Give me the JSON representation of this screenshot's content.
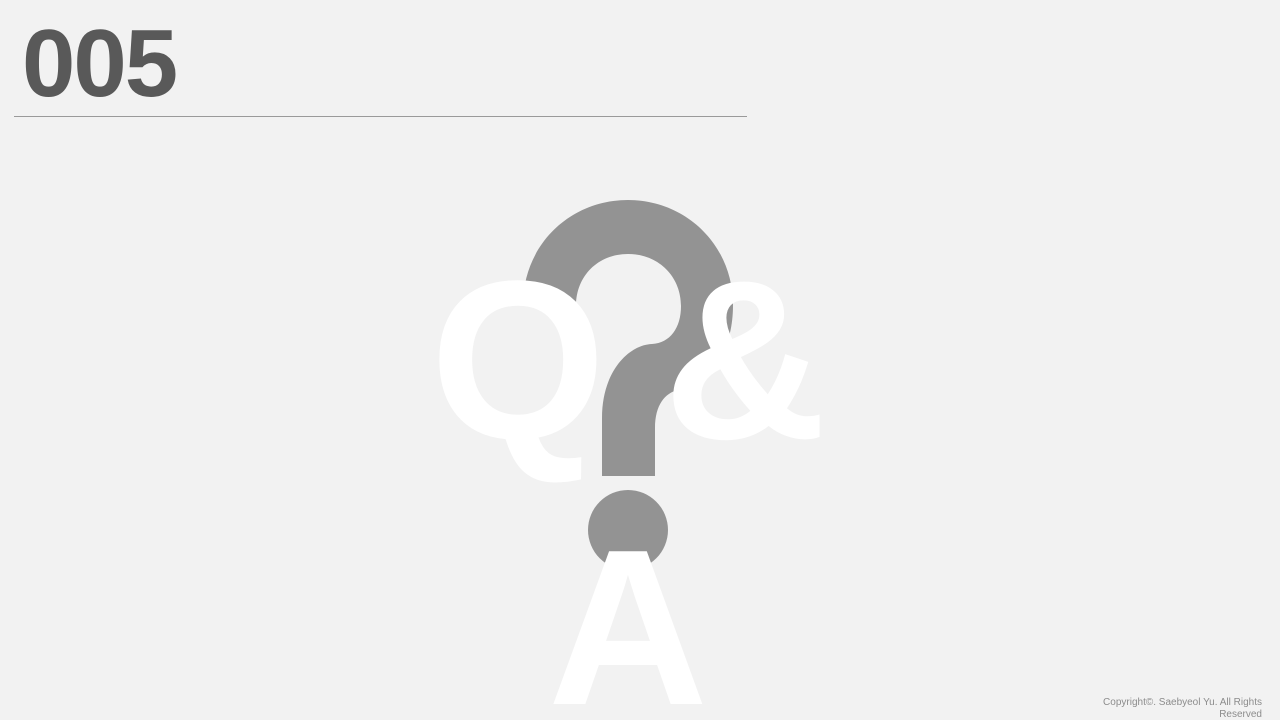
{
  "slide": {
    "number": "005",
    "background_color": "#f2f2f2",
    "number_color": "#595959"
  },
  "graphic": {
    "icon": "question-mark-icon",
    "icon_color": "#939393",
    "letters": {
      "q": "Q",
      "amp": "&",
      "a": "A"
    },
    "letter_color": "#ffffff"
  },
  "footer": {
    "copyright": "Copyright©. Saebyeol Yu. All Rights Reserved"
  }
}
